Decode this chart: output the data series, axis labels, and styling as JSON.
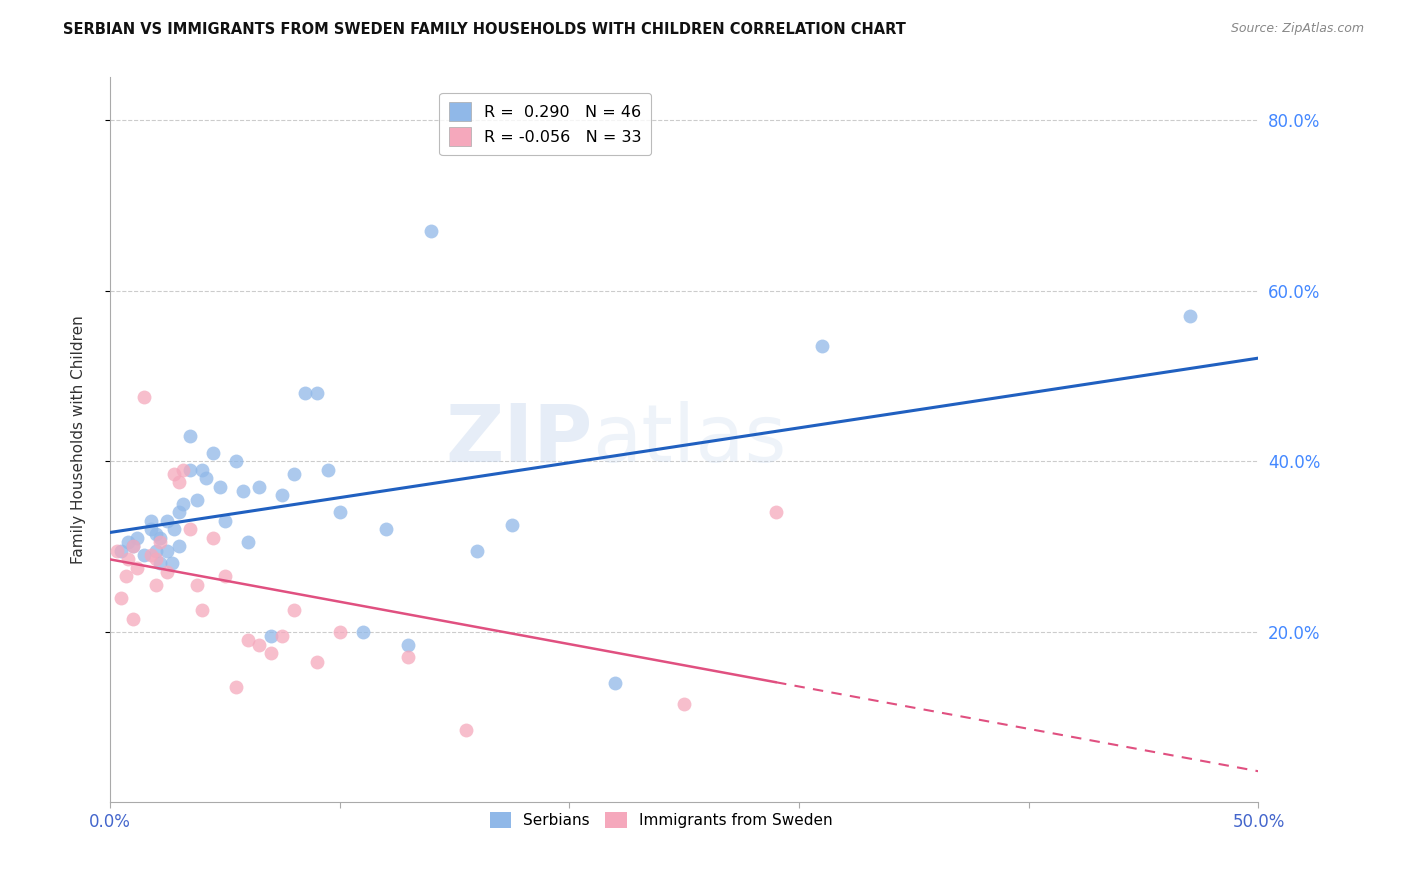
{
  "title": "SERBIAN VS IMMIGRANTS FROM SWEDEN FAMILY HOUSEHOLDS WITH CHILDREN CORRELATION CHART",
  "source": "Source: ZipAtlas.com",
  "ylabel": "Family Households with Children",
  "watermark": "ZIPatlas",
  "xlim": [
    0.0,
    0.5
  ],
  "ylim": [
    0.0,
    0.85
  ],
  "xticks": [
    0.0,
    0.1,
    0.2,
    0.3,
    0.4,
    0.5
  ],
  "xtick_labels": [
    "0.0%",
    "",
    "",
    "",
    "",
    "50.0%"
  ],
  "yticks": [
    0.2,
    0.4,
    0.6,
    0.8
  ],
  "ytick_labels": [
    "20.0%",
    "40.0%",
    "60.0%",
    "80.0%"
  ],
  "serbian_color": "#90b8e8",
  "immigrant_color": "#f5a8bc",
  "line_serbian_color": "#2060c0",
  "line_immigrant_color": "#e05080",
  "serbian_R": 0.29,
  "serbian_N": 46,
  "immigrant_R": -0.056,
  "immigrant_N": 33,
  "serbian_scatter_x": [
    0.005,
    0.008,
    0.01,
    0.012,
    0.015,
    0.018,
    0.018,
    0.02,
    0.02,
    0.022,
    0.022,
    0.025,
    0.025,
    0.027,
    0.028,
    0.03,
    0.03,
    0.032,
    0.035,
    0.035,
    0.038,
    0.04,
    0.042,
    0.045,
    0.048,
    0.05,
    0.055,
    0.058,
    0.06,
    0.065,
    0.07,
    0.075,
    0.08,
    0.085,
    0.09,
    0.095,
    0.1,
    0.11,
    0.12,
    0.13,
    0.14,
    0.16,
    0.175,
    0.22,
    0.31,
    0.47
  ],
  "serbian_scatter_y": [
    0.295,
    0.305,
    0.3,
    0.31,
    0.29,
    0.33,
    0.32,
    0.315,
    0.295,
    0.31,
    0.28,
    0.33,
    0.295,
    0.28,
    0.32,
    0.34,
    0.3,
    0.35,
    0.43,
    0.39,
    0.355,
    0.39,
    0.38,
    0.41,
    0.37,
    0.33,
    0.4,
    0.365,
    0.305,
    0.37,
    0.195,
    0.36,
    0.385,
    0.48,
    0.48,
    0.39,
    0.34,
    0.2,
    0.32,
    0.185,
    0.67,
    0.295,
    0.325,
    0.14,
    0.535,
    0.57
  ],
  "immigrant_scatter_x": [
    0.003,
    0.005,
    0.007,
    0.008,
    0.01,
    0.01,
    0.012,
    0.015,
    0.018,
    0.02,
    0.02,
    0.022,
    0.025,
    0.028,
    0.03,
    0.032,
    0.035,
    0.038,
    0.04,
    0.045,
    0.05,
    0.055,
    0.06,
    0.065,
    0.07,
    0.075,
    0.08,
    0.09,
    0.1,
    0.13,
    0.155,
    0.25,
    0.29
  ],
  "immigrant_scatter_y": [
    0.295,
    0.24,
    0.265,
    0.285,
    0.3,
    0.215,
    0.275,
    0.475,
    0.29,
    0.285,
    0.255,
    0.305,
    0.27,
    0.385,
    0.375,
    0.39,
    0.32,
    0.255,
    0.225,
    0.31,
    0.265,
    0.135,
    0.19,
    0.185,
    0.175,
    0.195,
    0.225,
    0.165,
    0.2,
    0.17,
    0.085,
    0.115,
    0.34
  ],
  "grid_color": "#cccccc",
  "background_color": "#ffffff",
  "title_color": "#111111",
  "axis_tick_color": "#4466cc",
  "right_ytick_color": "#4488ff",
  "legend_serbian_label": "R =  0.290   N = 46",
  "legend_immigrant_label": "R = -0.056   N = 33",
  "bottom_legend_serbian": "Serbians",
  "bottom_legend_immigrant": "Immigrants from Sweden"
}
